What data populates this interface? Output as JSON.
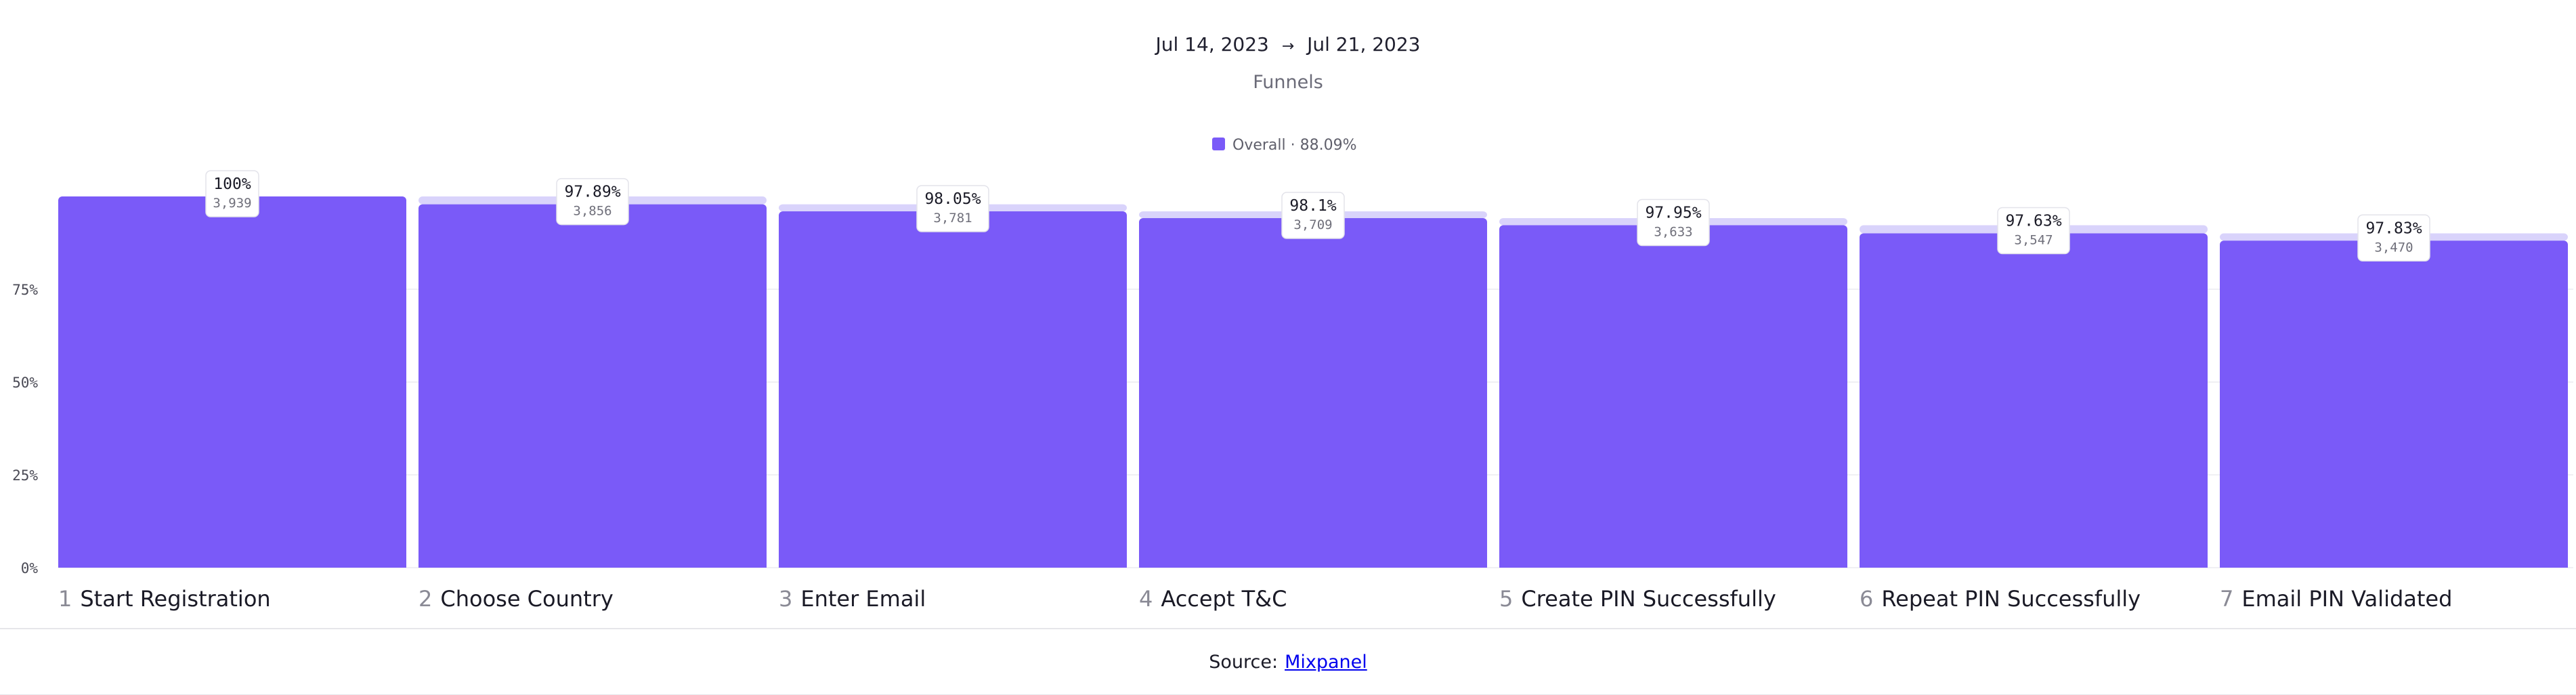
{
  "header": {
    "date_start": "Jul 14, 2023",
    "arrow": "→",
    "date_end": "Jul 21, 2023",
    "subtitle": "Funnels"
  },
  "legend": {
    "label": "Overall · 88.09%"
  },
  "colors": {
    "bar": "#7a5af8",
    "ghost": "#d9d3fb",
    "grid": "#ebebf0"
  },
  "chart_data": {
    "type": "bar",
    "categories": [
      "Start Registration",
      "Choose Country",
      "Enter Email",
      "Accept T&C",
      "Create PIN Successfully",
      "Repeat PIN Successfully",
      "Email PIN Validated"
    ],
    "step_numbers": [
      "1",
      "2",
      "3",
      "4",
      "5",
      "6",
      "7"
    ],
    "values": [
      100,
      97.89,
      95.99,
      94.16,
      92.24,
      90.05,
      88.09
    ],
    "counts": [
      "3,939",
      "3,856",
      "3,781",
      "3,709",
      "3,633",
      "3,547",
      "3,470"
    ],
    "step_conversion_labels": [
      "100%",
      "97.89%",
      "98.05%",
      "98.1%",
      "97.95%",
      "97.63%",
      "97.83%"
    ],
    "yticks": [
      "0%",
      "25%",
      "50%",
      "75%"
    ],
    "ytick_values": [
      0,
      25,
      50,
      75
    ],
    "ylim": [
      0,
      100
    ],
    "legend_position": "top-center",
    "grid": true
  },
  "footer": {
    "source_prefix": "Source:",
    "source_link": "Mixpanel"
  }
}
